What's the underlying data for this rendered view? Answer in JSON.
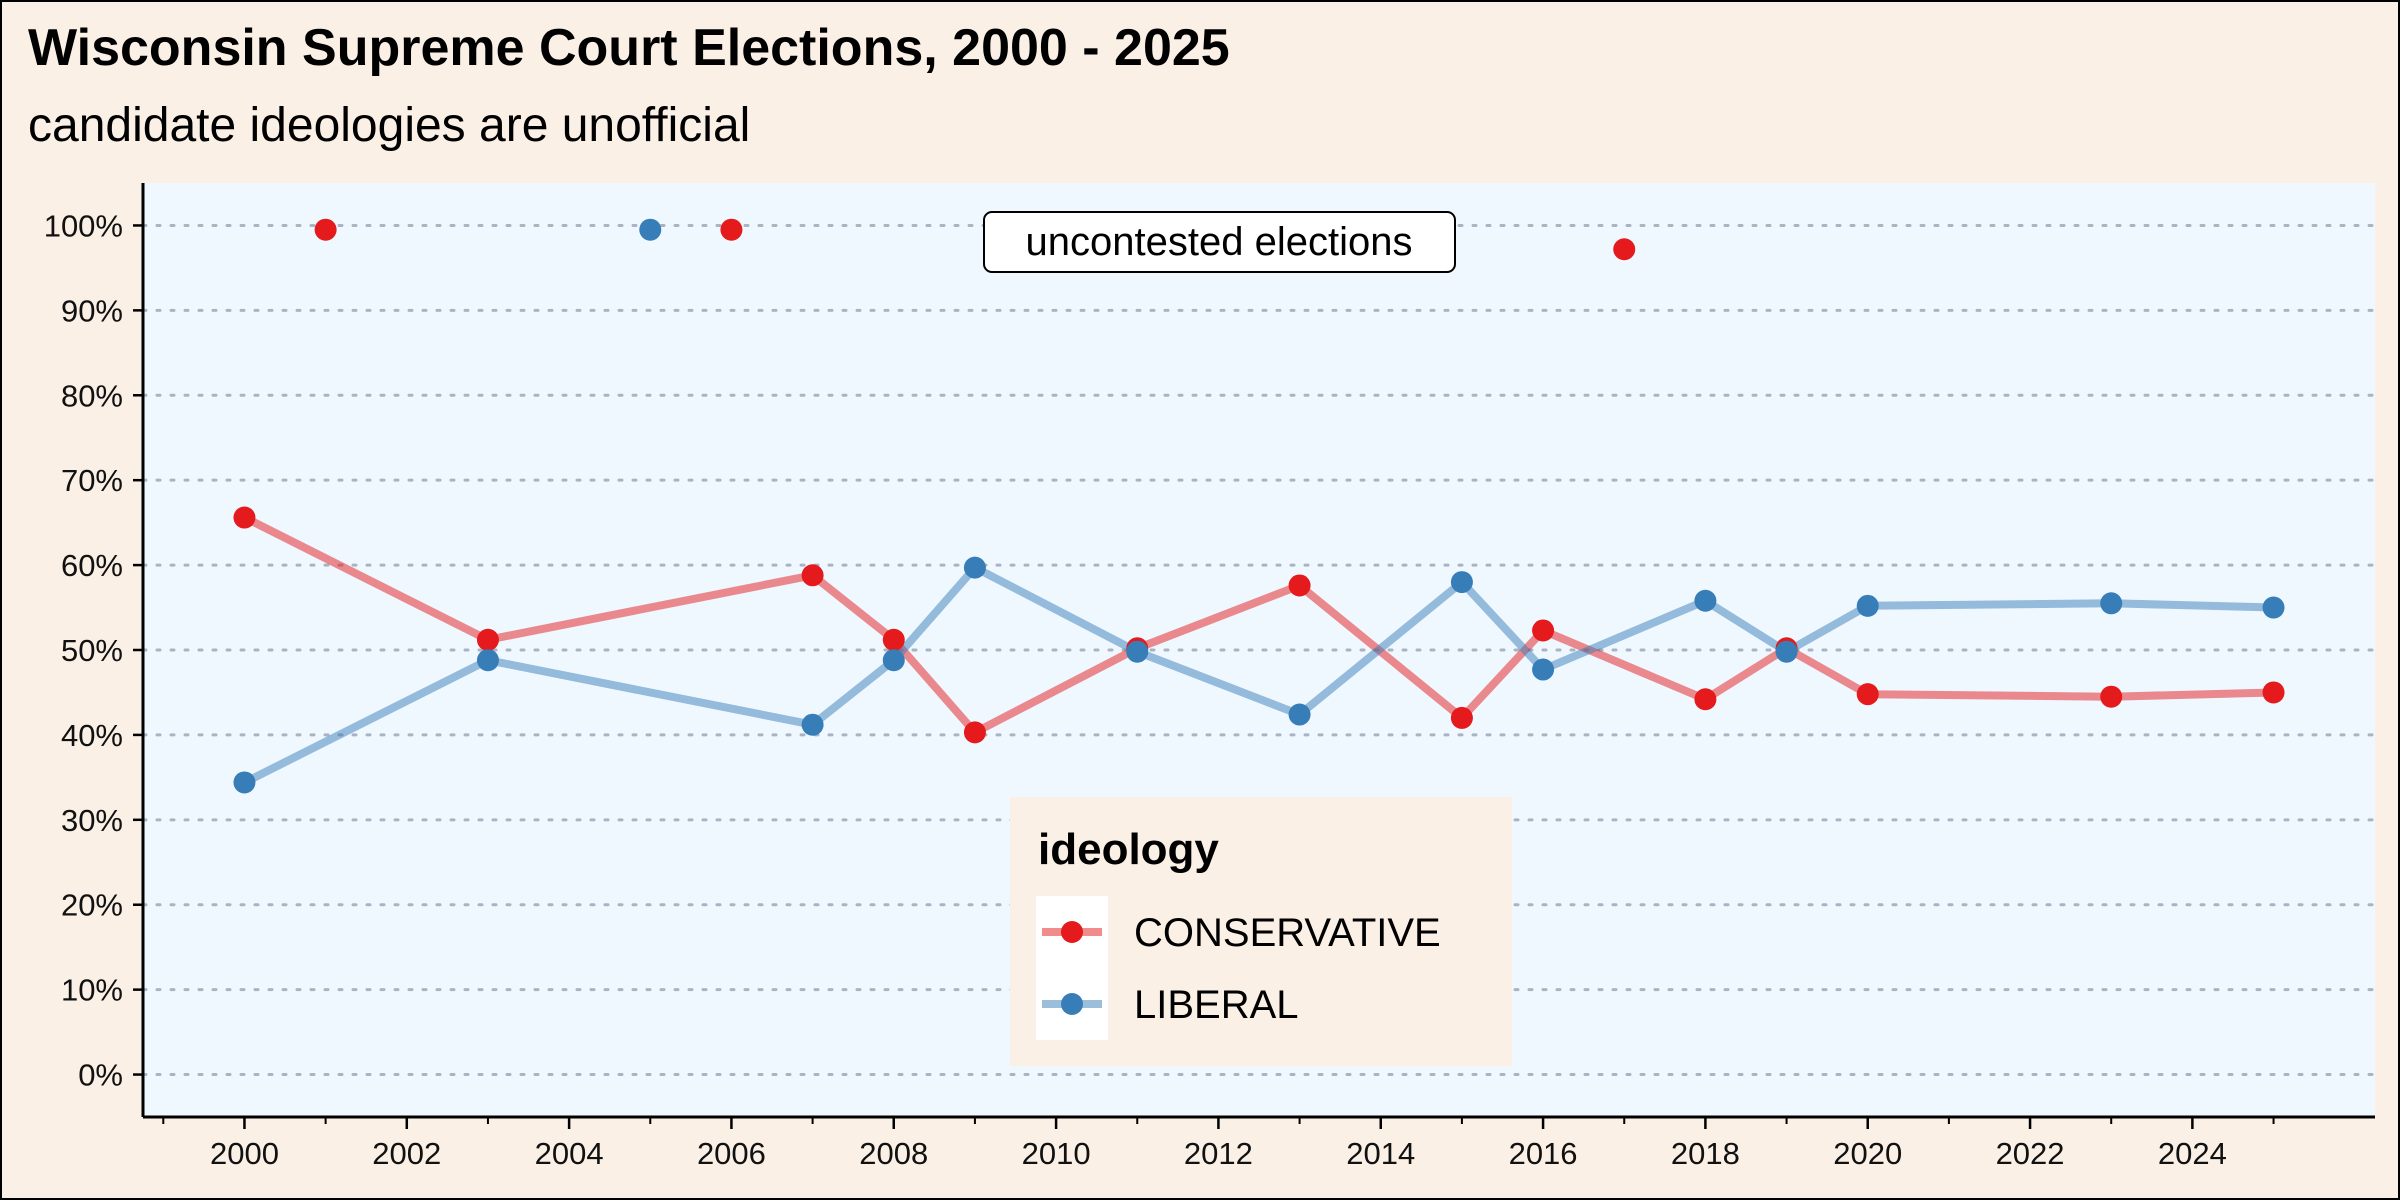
{
  "chart_data": {
    "type": "line",
    "title": "Wisconsin Supreme Court Elections, 2000 - 2025",
    "subtitle": "candidate ideologies are unofficial",
    "xlabel": "",
    "ylabel": "",
    "xlim": [
      1998.75,
      2026.25
    ],
    "ylim": [
      -0.05,
      1.05
    ],
    "x_ticks": [
      2000,
      2002,
      2004,
      2006,
      2008,
      2010,
      2012,
      2014,
      2016,
      2018,
      2020,
      2022,
      2024
    ],
    "y_ticks": [
      0,
      0.1,
      0.2,
      0.3,
      0.4,
      0.5,
      0.6,
      0.7,
      0.8,
      0.9,
      1.0
    ],
    "y_tick_labels": [
      "0%",
      "10%",
      "20%",
      "30%",
      "40%",
      "50%",
      "60%",
      "70%",
      "80%",
      "90%",
      "100%"
    ],
    "grid": "horizontal dotted",
    "legend": {
      "title": "ideology",
      "placement": "bottom-center",
      "entries": [
        "CONSERVATIVE",
        "LIBERAL"
      ]
    },
    "series": [
      {
        "name": "CONSERVATIVE",
        "color": "#e41a1c",
        "x": [
          2000,
          2003,
          2007,
          2008,
          2009,
          2011,
          2013,
          2015,
          2016,
          2018,
          2019,
          2020,
          2023,
          2025
        ],
        "y": [
          0.656,
          0.512,
          0.588,
          0.512,
          0.403,
          0.502,
          0.576,
          0.42,
          0.523,
          0.442,
          0.502,
          0.448,
          0.445,
          0.45
        ]
      },
      {
        "name": "LIBERAL",
        "color": "#377eb8",
        "x": [
          2000,
          2003,
          2007,
          2008,
          2009,
          2011,
          2013,
          2015,
          2016,
          2018,
          2019,
          2020,
          2023,
          2025
        ],
        "y": [
          0.344,
          0.488,
          0.412,
          0.488,
          0.597,
          0.498,
          0.424,
          0.58,
          0.477,
          0.558,
          0.498,
          0.552,
          0.555,
          0.55
        ]
      }
    ],
    "uncontested": {
      "label": "uncontested elections",
      "points": [
        {
          "ideology": "CONSERVATIVE",
          "x": 2001,
          "y": 0.995
        },
        {
          "ideology": "LIBERAL",
          "x": 2005,
          "y": 0.995
        },
        {
          "ideology": "CONSERVATIVE",
          "x": 2006,
          "y": 0.995
        },
        {
          "ideology": "CONSERVATIVE",
          "x": 2017,
          "y": 0.972
        }
      ]
    }
  }
}
